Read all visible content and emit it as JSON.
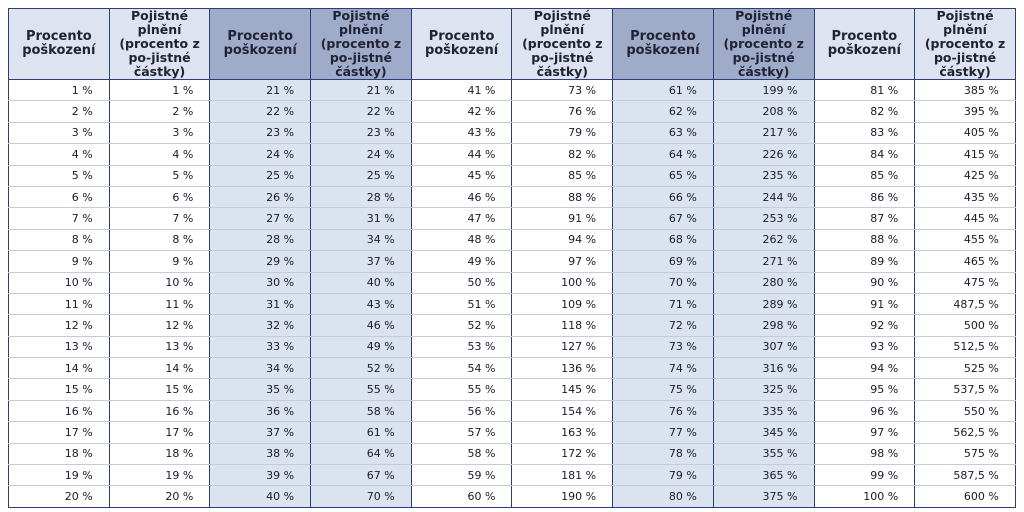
{
  "headers": [
    "Procento poškození",
    "Pojistné plnění (procento z po-jistné částky)",
    "Procento poškození",
    "Pojistné plnění (procento z po-jistné částky)",
    "Procento poškození",
    "Pojistné plnění (procento z po-jistné částky)",
    "Procento poškození",
    "Pojistné plnění (procento z po-jistné částky)",
    "Procento poškození",
    "Pojistné plnění (procento z po-jistné částky)"
  ],
  "rows": [
    [
      "1 %",
      "1 %",
      "21 %",
      "21 %",
      "41 %",
      "73 %",
      "61 %",
      "199 %",
      "81 %",
      "385 %"
    ],
    [
      "2 %",
      "2 %",
      "22 %",
      "22 %",
      "42 %",
      "76 %",
      "62 %",
      "208 %",
      "82 %",
      "395 %"
    ],
    [
      "3 %",
      "3 %",
      "23 %",
      "23 %",
      "43 %",
      "79 %",
      "63 %",
      "217 %",
      "83 %",
      "405 %"
    ],
    [
      "4 %",
      "4 %",
      "24 %",
      "24 %",
      "44 %",
      "82 %",
      "64 %",
      "226 %",
      "84 %",
      "415 %"
    ],
    [
      "5 %",
      "5 %",
      "25 %",
      "25 %",
      "45 %",
      "85 %",
      "65 %",
      "235 %",
      "85 %",
      "425 %"
    ],
    [
      "6 %",
      "6 %",
      "26 %",
      "28 %",
      "46 %",
      "88 %",
      "66 %",
      "244 %",
      "86 %",
      "435 %"
    ],
    [
      "7 %",
      "7 %",
      "27 %",
      "31 %",
      "47 %",
      "91 %",
      "67 %",
      "253 %",
      "87 %",
      "445 %"
    ],
    [
      "8 %",
      "8 %",
      "28 %",
      "34 %",
      "48 %",
      "94 %",
      "68 %",
      "262 %",
      "88 %",
      "455 %"
    ],
    [
      "9 %",
      "9 %",
      "29 %",
      "37 %",
      "49 %",
      "97 %",
      "69 %",
      "271 %",
      "89 %",
      "465 %"
    ],
    [
      "10 %",
      "10 %",
      "30 %",
      "40 %",
      "50 %",
      "100 %",
      "70 %",
      "280 %",
      "90 %",
      "475 %"
    ],
    [
      "11 %",
      "11 %",
      "31 %",
      "43 %",
      "51 %",
      "109 %",
      "71 %",
      "289 %",
      "91 %",
      "487,5 %"
    ],
    [
      "12 %",
      "12 %",
      "32 %",
      "46 %",
      "52 %",
      "118 %",
      "72 %",
      "298 %",
      "92 %",
      "500 %"
    ],
    [
      "13 %",
      "13 %",
      "33 %",
      "49 %",
      "53 %",
      "127 %",
      "73 %",
      "307 %",
      "93 %",
      "512,5 %"
    ],
    [
      "14 %",
      "14 %",
      "34 %",
      "52 %",
      "54 %",
      "136 %",
      "74 %",
      "316 %",
      "94 %",
      "525 %"
    ],
    [
      "15 %",
      "15 %",
      "35 %",
      "55 %",
      "55 %",
      "145 %",
      "75 %",
      "325 %",
      "95 %",
      "537,5 %"
    ],
    [
      "16 %",
      "16 %",
      "36 %",
      "58 %",
      "56 %",
      "154 %",
      "76 %",
      "335 %",
      "96 %",
      "550 %"
    ],
    [
      "17 %",
      "17 %",
      "37 %",
      "61 %",
      "57 %",
      "163 %",
      "77 %",
      "345 %",
      "97 %",
      "562,5 %"
    ],
    [
      "18 %",
      "18 %",
      "38 %",
      "64 %",
      "58 %",
      "172 %",
      "78 %",
      "355 %",
      "98 %",
      "575 %"
    ],
    [
      "19 %",
      "19 %",
      "39 %",
      "67 %",
      "59 %",
      "181 %",
      "79 %",
      "365 %",
      "99 %",
      "587,5 %"
    ],
    [
      "20 %",
      "20 %",
      "40 %",
      "70 %",
      "60 %",
      "190 %",
      "80 %",
      "375 %",
      "100 %",
      "600 %"
    ]
  ],
  "colors": {
    "border": "#2c3e78",
    "header_light": "#dde4ef",
    "header_dark": "#9eacc9",
    "shaded_column": "#dbe3ef"
  }
}
